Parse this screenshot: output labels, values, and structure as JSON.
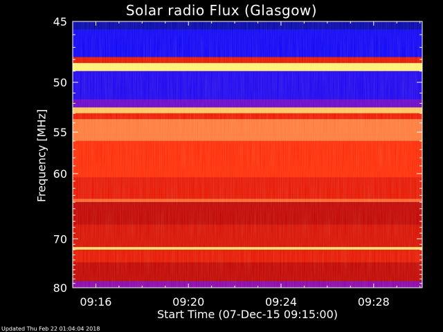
{
  "chart_data": {
    "type": "heatmap",
    "title": "Solar radio Flux (Glasgow)",
    "xlabel": "Start Time (07-Dec-15 09:15:00)",
    "ylabel": "Frequency [MHz]",
    "x_ticks": [
      "09:16",
      "09:20",
      "09:24",
      "09:28"
    ],
    "x_tick_minutes": [
      16,
      20,
      24,
      28
    ],
    "x_range_minutes": [
      15,
      30.1
    ],
    "y_ticks": [
      45,
      50,
      55,
      60,
      70,
      80
    ],
    "y_range_mhz": [
      45,
      80
    ],
    "y_scale": "reciprocal",
    "colormap": [
      "#000060",
      "#0000ff",
      "#8000c0",
      "#c00000",
      "#ff2000",
      "#ff8040",
      "#ffff80"
    ],
    "bands": [
      {
        "f0": 45.0,
        "f1": 45.6,
        "level": 0.08
      },
      {
        "f0": 45.6,
        "f1": 47.8,
        "level": 0.18
      },
      {
        "f0": 47.8,
        "f1": 48.3,
        "level": 0.6
      },
      {
        "f0": 48.3,
        "f1": 49.0,
        "level": 0.98
      },
      {
        "f0": 49.0,
        "f1": 51.6,
        "level": 0.2
      },
      {
        "f0": 51.6,
        "f1": 52.4,
        "level": 0.3
      },
      {
        "f0": 52.4,
        "f1": 53.0,
        "level": 0.92
      },
      {
        "f0": 53.0,
        "f1": 53.6,
        "level": 0.62
      },
      {
        "f0": 53.6,
        "f1": 56.0,
        "level": 0.82
      },
      {
        "f0": 56.0,
        "f1": 60.5,
        "level": 0.68
      },
      {
        "f0": 60.5,
        "f1": 63.5,
        "level": 0.6
      },
      {
        "f0": 63.5,
        "f1": 64.0,
        "level": 0.78
      },
      {
        "f0": 64.0,
        "f1": 67.5,
        "level": 0.5
      },
      {
        "f0": 67.5,
        "f1": 71.5,
        "level": 0.56
      },
      {
        "f0": 71.5,
        "f1": 72.0,
        "level": 0.95
      },
      {
        "f0": 72.0,
        "f1": 74.5,
        "level": 0.6
      },
      {
        "f0": 74.5,
        "f1": 78.5,
        "level": 0.5
      },
      {
        "f0": 78.5,
        "f1": 80.0,
        "level": 0.35
      }
    ]
  },
  "footer": {
    "updated": "Updated Thu Feb 22 01:04:04 2018"
  }
}
